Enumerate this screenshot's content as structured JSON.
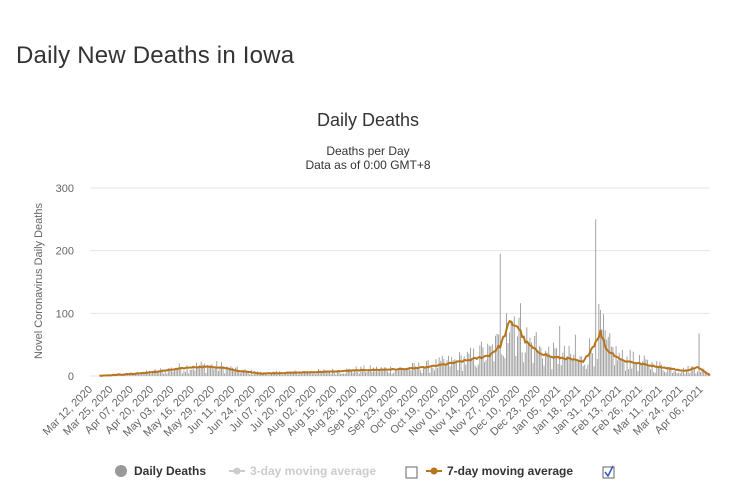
{
  "page": {
    "title": "Daily New Deaths in Iowa"
  },
  "chart_data": {
    "type": "bar",
    "title": "Daily Deaths",
    "subtitle_line1": "Deaths per Day",
    "subtitle_line2": "Data as of 0:00 GMT+8",
    "ylabel": "Novel Coronavirus Daily Deaths",
    "xlabel": "",
    "ylim": [
      0,
      300
    ],
    "y_ticks": [
      0,
      100,
      200,
      300
    ],
    "grid": true,
    "x_start_date": "2020-03-12",
    "x_end_date": "2021-04-12",
    "x_tick_labels": [
      "Mar 12, 2020",
      "Mar 25, 2020",
      "Apr 07, 2020",
      "Apr 20, 2020",
      "May 03, 2020",
      "May 16, 2020",
      "May 29, 2020",
      "Jun 11, 2020",
      "Jun 24, 2020",
      "Jul 07, 2020",
      "Jul 20, 2020",
      "Aug 02, 2020",
      "Aug 15, 2020",
      "Aug 28, 2020",
      "Sep 10, 2020",
      "Sep 23, 2020",
      "Oct 06, 2020",
      "Oct 19, 2020",
      "Nov 01, 2020",
      "Nov 14, 2020",
      "Nov 27, 2020",
      "Dec 10, 2020",
      "Dec 23, 2020",
      "Jan 05, 2021",
      "Jan 18, 2021",
      "Jan 31, 2021",
      "Feb 13, 2021",
      "Feb 26, 2021",
      "Mar 11, 2021",
      "Mar 24, 2021",
      "Apr 06, 2021"
    ],
    "colors": {
      "bars": "#999999",
      "moving_avg_7": "#b8741a",
      "legend_muted": "#cccccc",
      "grid": "#e6e6e6"
    },
    "series": [
      {
        "name": "Daily Deaths",
        "kind": "bar",
        "approx_values_by_segment": [
          {
            "from_day": 0,
            "to_day": 30,
            "values": [
              0,
              0,
              0,
              0,
              0,
              0,
              0,
              0,
              0,
              1,
              0,
              1,
              0,
              1,
              2,
              0,
              1,
              2,
              1,
              3,
              2,
              1,
              4,
              3,
              2,
              3,
              5,
              4,
              6,
              4,
              3
            ]
          },
          {
            "from_day": 31,
            "to_day": 90,
            "values_pattern": "8-18 range, peaking ~18 near May 2020"
          },
          {
            "from_day": 91,
            "to_day": 200,
            "values_pattern": "2-12 range"
          },
          {
            "from_day": 201,
            "to_day": 250,
            "values_pattern": "10-40 range rising"
          },
          {
            "from_day": 251,
            "to_day": 290,
            "values_pattern": "30-195 range, peak 195 around Dec 2020"
          },
          {
            "from_day": 291,
            "to_day": 395,
            "values_pattern": "5-250 range, spike 250 near Jan 2021, 68 near Apr 2021"
          }
        ],
        "notable_points": [
          {
            "label": "Dec 2020 peak",
            "value": 195
          },
          {
            "label": "Jan 2021 spike",
            "value": 250
          },
          {
            "label": "Apr 2021 spike",
            "value": 68
          }
        ]
      },
      {
        "name": "3-day moving average",
        "kind": "line",
        "visible": false
      },
      {
        "name": "7-day moving average",
        "kind": "line",
        "visible": true,
        "keypoints": [
          {
            "day": 0,
            "value": 0
          },
          {
            "day": 10,
            "value": 1
          },
          {
            "day": 25,
            "value": 3
          },
          {
            "day": 40,
            "value": 6
          },
          {
            "day": 55,
            "value": 11
          },
          {
            "day": 65,
            "value": 14
          },
          {
            "day": 75,
            "value": 15
          },
          {
            "day": 85,
            "value": 13
          },
          {
            "day": 95,
            "value": 8
          },
          {
            "day": 110,
            "value": 4
          },
          {
            "day": 125,
            "value": 5
          },
          {
            "day": 140,
            "value": 6
          },
          {
            "day": 155,
            "value": 7
          },
          {
            "day": 170,
            "value": 9
          },
          {
            "day": 185,
            "value": 10
          },
          {
            "day": 200,
            "value": 11
          },
          {
            "day": 215,
            "value": 14
          },
          {
            "day": 230,
            "value": 20
          },
          {
            "day": 245,
            "value": 27
          },
          {
            "day": 255,
            "value": 33
          },
          {
            "day": 262,
            "value": 48
          },
          {
            "day": 268,
            "value": 85
          },
          {
            "day": 273,
            "value": 80
          },
          {
            "day": 278,
            "value": 55
          },
          {
            "day": 285,
            "value": 40
          },
          {
            "day": 295,
            "value": 30
          },
          {
            "day": 305,
            "value": 28
          },
          {
            "day": 315,
            "value": 22
          },
          {
            "day": 322,
            "value": 50
          },
          {
            "day": 326,
            "value": 70
          },
          {
            "day": 330,
            "value": 42
          },
          {
            "day": 340,
            "value": 25
          },
          {
            "day": 355,
            "value": 18
          },
          {
            "day": 370,
            "value": 12
          },
          {
            "day": 380,
            "value": 8
          },
          {
            "day": 388,
            "value": 14
          },
          {
            "day": 393,
            "value": 6
          },
          {
            "day": 396,
            "value": 2
          }
        ]
      }
    ],
    "legend": {
      "placement": "bottom",
      "items": [
        {
          "label": "Daily Deaths",
          "active": true,
          "checkbox": false
        },
        {
          "label": "3-day moving average",
          "active": false,
          "checkbox": false
        },
        {
          "label": "7-day moving average",
          "active": true,
          "checkbox": true
        }
      ]
    }
  }
}
